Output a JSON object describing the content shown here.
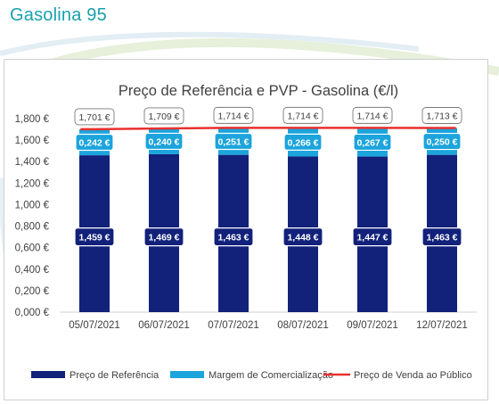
{
  "slide_title": "Gasolina 95",
  "chart_data": {
    "type": "bar",
    "stacked": true,
    "title": "Preço de Referência e PVP - Gasolina (€/l)",
    "categories": [
      "05/07/2021",
      "06/07/2021",
      "07/07/2021",
      "08/07/2021",
      "09/07/2021",
      "12/07/2021"
    ],
    "y_ticks": [
      "0,000 €",
      "0,200 €",
      "0,400 €",
      "0,600 €",
      "0,800 €",
      "1,000 €",
      "1,200 €",
      "1,400 €",
      "1,600 €",
      "1,800 €"
    ],
    "ylim": [
      0,
      1.8
    ],
    "series": [
      {
        "name": "Preço de Referência",
        "kind": "bar",
        "color": "#12217a",
        "values": [
          1.459,
          1.469,
          1.463,
          1.448,
          1.447,
          1.463
        ],
        "labels": [
          "1,459 €",
          "1,469 €",
          "1,463 €",
          "1,448 €",
          "1,447 €",
          "1,463 €"
        ]
      },
      {
        "name": "Margem de Comercialização",
        "kind": "bar",
        "color": "#1ca4dc",
        "values": [
          0.242,
          0.24,
          0.251,
          0.266,
          0.267,
          0.25
        ],
        "labels": [
          "0,242 €",
          "0,240 €",
          "0,251 €",
          "0,266 €",
          "0,267 €",
          "0,250 €"
        ]
      },
      {
        "name": "Preço de Venda ao Público",
        "kind": "line",
        "color": "#e8312f",
        "values": [
          1.701,
          1.709,
          1.714,
          1.714,
          1.714,
          1.713
        ],
        "labels": [
          "1,701 €",
          "1,709 €",
          "1,714 €",
          "1,714 €",
          "1,714 €",
          "1,713 €"
        ]
      }
    ],
    "legend_position": "bottom",
    "grid": false
  }
}
